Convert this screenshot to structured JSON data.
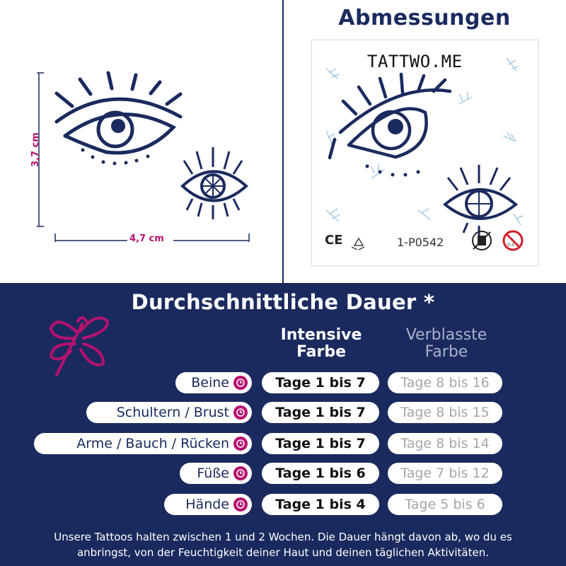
{
  "dimensions": {
    "width_label": "4,7 cm",
    "height_label": "3,7 cm"
  },
  "abmessungen": {
    "title": "Abmessungen",
    "brand": "TATTWO.ME",
    "ce_label": "CE",
    "product_code": "1-P0542"
  },
  "durations": {
    "title": "Durchschnittliche Dauer *",
    "col_intensive_line1": "Intensive",
    "col_intensive_line2": "Farbe",
    "col_faded_line1": "Verblasste",
    "col_faded_line2": "Farbe",
    "rows": [
      {
        "area": "Beine",
        "intensive": "Tage 1 bis 7",
        "faded": "Tage 8 bis 16"
      },
      {
        "area": "Schultern / Brust",
        "intensive": "Tage 1 bis 7",
        "faded": "Tage 8 bis 15"
      },
      {
        "area": "Arme / Bauch / Rücken",
        "intensive": "Tage 1 bis 7",
        "faded": "Tage 8 bis 14"
      },
      {
        "area": "Füße",
        "intensive": "Tage 1 bis 6",
        "faded": "Tage 7 bis 12"
      },
      {
        "area": "Hände",
        "intensive": "Tage 1 bis 4",
        "faded": "Tage 5 bis 6"
      }
    ]
  },
  "footer": {
    "line1": "Unsere Tattoos halten zwischen 1 und 2 Wochen. Die Dauer hängt davon ab, wo du es",
    "line2": "anbringst, von der Feuchtigkeit deiner Haut und deinen täglichen Aktivitäten."
  },
  "colors": {
    "navy": "#1b2a5e",
    "magenta": "#b5126e",
    "faded_text": "#a6a6a6"
  }
}
